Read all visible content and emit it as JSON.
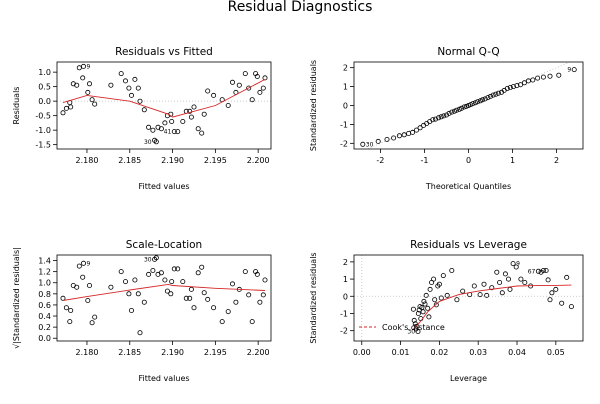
{
  "title": "Residual Diagnostics",
  "colors": {
    "axis": "#000000",
    "points": "#000000",
    "smooth": "#d62728",
    "reference": "#bdbdbd",
    "grid": "#cccccc"
  },
  "chart_data": [
    {
      "type": "scatter",
      "title": "Residuals vs Fitted",
      "xlabel": "Fitted values",
      "ylabel": "Residuals",
      "xlim": [
        2.1765,
        2.2015
      ],
      "ylim": [
        -1.65,
        1.35
      ],
      "xticks": [
        2.18,
        2.185,
        2.19,
        2.195,
        2.2
      ],
      "xtick_labels": [
        "2.180",
        "2.185",
        "2.190",
        "2.195",
        "2.200"
      ],
      "yticks": [
        -1.5,
        -1.0,
        -0.5,
        0.0,
        0.5,
        1.0
      ],
      "ytick_labels": [
        "-1.5",
        "-1.0",
        "-0.5",
        "0.0",
        "0.5",
        "1.0"
      ],
      "reference_hline": 0,
      "points": [
        [
          2.1772,
          -0.4
        ],
        [
          2.1776,
          -0.25
        ],
        [
          2.178,
          -0.05
        ],
        [
          2.1781,
          -0.2
        ],
        [
          2.1784,
          0.6
        ],
        [
          2.1788,
          0.55
        ],
        [
          2.1791,
          1.15
        ],
        [
          2.1795,
          0.8
        ],
        [
          2.1796,
          1.2
        ],
        [
          2.1801,
          0.3
        ],
        [
          2.1803,
          0.6
        ],
        [
          2.1806,
          0.05
        ],
        [
          2.1809,
          -0.1
        ],
        [
          2.1828,
          0.55
        ],
        [
          2.184,
          0.95
        ],
        [
          2.1845,
          0.7
        ],
        [
          2.1849,
          0.45
        ],
        [
          2.1852,
          0.2
        ],
        [
          2.1856,
          0.75
        ],
        [
          2.186,
          0.45
        ],
        [
          2.1862,
          0.0
        ],
        [
          2.1867,
          -0.3
        ],
        [
          2.1872,
          -0.9
        ],
        [
          2.1877,
          -1.0
        ],
        [
          2.1879,
          -1.35
        ],
        [
          2.1881,
          -1.4
        ],
        [
          2.1883,
          -0.9
        ],
        [
          2.1887,
          -0.95
        ],
        [
          2.1891,
          -0.75
        ],
        [
          2.1894,
          -0.5
        ],
        [
          2.1898,
          -0.45
        ],
        [
          2.1899,
          -0.7
        ],
        [
          2.1902,
          -1.05
        ],
        [
          2.1906,
          -1.05
        ],
        [
          2.1912,
          -0.7
        ],
        [
          2.1916,
          -0.35
        ],
        [
          2.192,
          -0.35
        ],
        [
          2.1922,
          -0.55
        ],
        [
          2.1925,
          -0.2
        ],
        [
          2.193,
          -0.95
        ],
        [
          2.1934,
          -1.1
        ],
        [
          2.1937,
          -0.45
        ],
        [
          2.1941,
          0.35
        ],
        [
          2.1948,
          0.2
        ],
        [
          2.1958,
          0.05
        ],
        [
          2.1965,
          -0.15
        ],
        [
          2.197,
          0.65
        ],
        [
          2.1974,
          0.3
        ],
        [
          2.1978,
          0.55
        ],
        [
          2.1985,
          0.95
        ],
        [
          2.1989,
          0.45
        ],
        [
          2.1993,
          0.05
        ],
        [
          2.1997,
          0.95
        ],
        [
          2.1999,
          0.85
        ],
        [
          2.2002,
          0.3
        ],
        [
          2.2006,
          0.45
        ],
        [
          2.2008,
          0.8
        ]
      ],
      "smooth": [
        [
          2.1772,
          -0.05
        ],
        [
          2.18,
          0.2
        ],
        [
          2.185,
          0.0
        ],
        [
          2.1895,
          -0.45
        ],
        [
          2.19,
          -0.55
        ],
        [
          2.195,
          -0.15
        ],
        [
          2.2008,
          0.75
        ]
      ],
      "point_labels": [
        {
          "text": "30",
          "x": 2.1879,
          "y": -1.4,
          "side": "left"
        },
        {
          "text": "41",
          "x": 2.1902,
          "y": -1.05,
          "side": "left"
        },
        {
          "text": "9",
          "x": 2.1796,
          "y": 1.2,
          "side": "right"
        }
      ]
    },
    {
      "type": "scatter",
      "title": "Normal Q-Q",
      "xlabel": "Theoretical Quantiles",
      "ylabel": "Standardized residuals",
      "xlim": [
        -2.6,
        2.6
      ],
      "ylim": [
        -2.3,
        2.3
      ],
      "xticks": [
        -2,
        -1,
        0,
        1,
        2
      ],
      "xtick_labels": [
        "-2",
        "-1",
        "0",
        "1",
        "2"
      ],
      "yticks": [
        -2,
        -1,
        0,
        1,
        2
      ],
      "ytick_labels": [
        "-2",
        "-1",
        "0",
        "1",
        "2"
      ],
      "reference_line": [
        [
          -2.6,
          -2.6
        ],
        [
          2.6,
          2.6
        ]
      ],
      "points": [
        [
          -2.4,
          -2.05
        ],
        [
          -2.05,
          -1.9
        ],
        [
          -1.85,
          -1.8
        ],
        [
          -1.7,
          -1.72
        ],
        [
          -1.57,
          -1.6
        ],
        [
          -1.46,
          -1.55
        ],
        [
          -1.36,
          -1.48
        ],
        [
          -1.27,
          -1.42
        ],
        [
          -1.18,
          -1.3
        ],
        [
          -1.1,
          -1.18
        ],
        [
          -1.02,
          -1.05
        ],
        [
          -0.95,
          -0.95
        ],
        [
          -0.88,
          -0.85
        ],
        [
          -0.81,
          -0.75
        ],
        [
          -0.75,
          -0.72
        ],
        [
          -0.68,
          -0.65
        ],
        [
          -0.62,
          -0.6
        ],
        [
          -0.56,
          -0.55
        ],
        [
          -0.5,
          -0.5
        ],
        [
          -0.44,
          -0.42
        ],
        [
          -0.38,
          -0.35
        ],
        [
          -0.32,
          -0.3
        ],
        [
          -0.27,
          -0.25
        ],
        [
          -0.21,
          -0.2
        ],
        [
          -0.16,
          -0.15
        ],
        [
          -0.1,
          -0.08
        ],
        [
          -0.05,
          -0.05
        ],
        [
          0.0,
          0.0
        ],
        [
          0.05,
          0.05
        ],
        [
          0.1,
          0.1
        ],
        [
          0.16,
          0.15
        ],
        [
          0.21,
          0.2
        ],
        [
          0.27,
          0.25
        ],
        [
          0.32,
          0.3
        ],
        [
          0.38,
          0.35
        ],
        [
          0.44,
          0.42
        ],
        [
          0.5,
          0.48
        ],
        [
          0.56,
          0.55
        ],
        [
          0.62,
          0.6
        ],
        [
          0.68,
          0.65
        ],
        [
          0.75,
          0.7
        ],
        [
          0.81,
          0.8
        ],
        [
          0.88,
          0.9
        ],
        [
          0.95,
          0.95
        ],
        [
          1.02,
          1.0
        ],
        [
          1.1,
          1.05
        ],
        [
          1.18,
          1.1
        ],
        [
          1.27,
          1.2
        ],
        [
          1.36,
          1.3
        ],
        [
          1.46,
          1.35
        ],
        [
          1.57,
          1.45
        ],
        [
          1.7,
          1.5
        ],
        [
          1.85,
          1.55
        ],
        [
          2.05,
          1.6
        ],
        [
          2.4,
          1.9
        ]
      ],
      "point_labels": [
        {
          "text": "30",
          "x": -2.4,
          "y": -2.05,
          "side": "right"
        },
        {
          "text": "9",
          "x": 2.4,
          "y": 1.9,
          "side": "left"
        }
      ]
    },
    {
      "type": "scatter",
      "title": "Scale-Location",
      "xlabel": "Fitted values",
      "ylabel": "√|Standardized residuals|",
      "xlim": [
        2.1765,
        2.2015
      ],
      "ylim": [
        -0.05,
        1.5
      ],
      "xticks": [
        2.18,
        2.185,
        2.19,
        2.195,
        2.2
      ],
      "xtick_labels": [
        "2.180",
        "2.185",
        "2.190",
        "2.195",
        "2.200"
      ],
      "yticks": [
        0.0,
        0.2,
        0.4,
        0.6,
        0.8,
        1.0,
        1.2,
        1.4
      ],
      "ytick_labels": [
        "0.0",
        "0.2",
        "0.4",
        "0.6",
        "0.8",
        "1.0",
        "1.2",
        "1.4"
      ],
      "points": [
        [
          2.1772,
          0.72
        ],
        [
          2.1776,
          0.55
        ],
        [
          2.178,
          0.3
        ],
        [
          2.1781,
          0.5
        ],
        [
          2.1784,
          0.95
        ],
        [
          2.1788,
          0.92
        ],
        [
          2.1791,
          1.3
        ],
        [
          2.1795,
          1.1
        ],
        [
          2.1796,
          1.35
        ],
        [
          2.1801,
          0.68
        ],
        [
          2.1803,
          0.95
        ],
        [
          2.1806,
          0.28
        ],
        [
          2.1809,
          0.38
        ],
        [
          2.1828,
          0.92
        ],
        [
          2.184,
          1.2
        ],
        [
          2.1845,
          1.02
        ],
        [
          2.1849,
          0.8
        ],
        [
          2.1852,
          0.5
        ],
        [
          2.1856,
          1.05
        ],
        [
          2.186,
          0.8
        ],
        [
          2.1862,
          0.1
        ],
        [
          2.1867,
          0.65
        ],
        [
          2.1872,
          1.15
        ],
        [
          2.1877,
          1.22
        ],
        [
          2.1879,
          1.42
        ],
        [
          2.1881,
          1.45
        ],
        [
          2.1883,
          1.15
        ],
        [
          2.1887,
          1.18
        ],
        [
          2.1891,
          1.05
        ],
        [
          2.1894,
          0.85
        ],
        [
          2.1898,
          0.8
        ],
        [
          2.1899,
          1.02
        ],
        [
          2.1902,
          1.25
        ],
        [
          2.1906,
          1.25
        ],
        [
          2.1912,
          1.02
        ],
        [
          2.1916,
          0.72
        ],
        [
          2.192,
          0.72
        ],
        [
          2.1922,
          0.88
        ],
        [
          2.1925,
          0.55
        ],
        [
          2.193,
          1.18
        ],
        [
          2.1934,
          1.28
        ],
        [
          2.1937,
          0.82
        ],
        [
          2.1941,
          0.7
        ],
        [
          2.1948,
          0.55
        ],
        [
          2.1958,
          0.3
        ],
        [
          2.1965,
          0.48
        ],
        [
          2.197,
          0.98
        ],
        [
          2.1974,
          0.65
        ],
        [
          2.1978,
          0.88
        ],
        [
          2.1985,
          1.2
        ],
        [
          2.1989,
          0.78
        ],
        [
          2.1993,
          0.3
        ],
        [
          2.1997,
          1.2
        ],
        [
          2.1999,
          1.15
        ],
        [
          2.2002,
          0.65
        ],
        [
          2.2006,
          0.78
        ],
        [
          2.2008,
          1.05
        ]
      ],
      "smooth": [
        [
          2.1772,
          0.68
        ],
        [
          2.18,
          0.75
        ],
        [
          2.185,
          0.87
        ],
        [
          2.1895,
          0.97
        ],
        [
          2.19,
          0.95
        ],
        [
          2.195,
          0.9
        ],
        [
          2.2008,
          0.86
        ]
      ],
      "point_labels": [
        {
          "text": "30",
          "x": 2.1879,
          "y": 1.42,
          "side": "left"
        },
        {
          "text": "9",
          "x": 2.1796,
          "y": 1.35,
          "side": "right"
        }
      ]
    },
    {
      "type": "scatter",
      "title": "Residuals vs Leverage",
      "xlabel": "Leverage",
      "ylabel": "Standardized residuals",
      "xlim": [
        -0.002,
        0.057
      ],
      "ylim": [
        -2.6,
        2.4
      ],
      "xticks": [
        0.0,
        0.01,
        0.02,
        0.03,
        0.04,
        0.05
      ],
      "xtick_labels": [
        "0.00",
        "0.01",
        "0.02",
        "0.03",
        "0.04",
        "0.05"
      ],
      "yticks": [
        -2,
        -1,
        0,
        1,
        2
      ],
      "ytick_labels": [
        "-2",
        "-1",
        "0",
        "1",
        "2"
      ],
      "reference_hline": 0,
      "reference_vline": 0,
      "legend": {
        "label": "Cook's distance",
        "placement": "bottom-left"
      },
      "points": [
        [
          0.0133,
          -0.75
        ],
        [
          0.0135,
          -1.4
        ],
        [
          0.0138,
          -1.6
        ],
        [
          0.014,
          -1.9
        ],
        [
          0.0142,
          -1.75
        ],
        [
          0.0145,
          -2.05
        ],
        [
          0.0146,
          -1.0
        ],
        [
          0.0148,
          -0.8
        ],
        [
          0.015,
          -0.6
        ],
        [
          0.0152,
          -1.3
        ],
        [
          0.0155,
          -0.65
        ],
        [
          0.0158,
          -0.9
        ],
        [
          0.016,
          -0.3
        ],
        [
          0.0163,
          -0.45
        ],
        [
          0.0166,
          0.05
        ],
        [
          0.017,
          -0.7
        ],
        [
          0.0173,
          -1.2
        ],
        [
          0.0176,
          0.4
        ],
        [
          0.018,
          0.8
        ],
        [
          0.0185,
          1.0
        ],
        [
          0.0188,
          -0.2
        ],
        [
          0.0192,
          -0.5
        ],
        [
          0.0196,
          0.6
        ],
        [
          0.02,
          0.7
        ],
        [
          0.0205,
          -0.1
        ],
        [
          0.021,
          1.2
        ],
        [
          0.022,
          0.05
        ],
        [
          0.0232,
          1.5
        ],
        [
          0.0245,
          -0.2
        ],
        [
          0.026,
          0.3
        ],
        [
          0.0278,
          0.1
        ],
        [
          0.029,
          0.6
        ],
        [
          0.0305,
          0.1
        ],
        [
          0.0315,
          0.7
        ],
        [
          0.0322,
          0.05
        ],
        [
          0.0335,
          0.5
        ],
        [
          0.0348,
          1.4
        ],
        [
          0.0355,
          0.8
        ],
        [
          0.0362,
          0.2
        ],
        [
          0.037,
          1.3
        ],
        [
          0.0378,
          1.0
        ],
        [
          0.0382,
          0.4
        ],
        [
          0.039,
          1.9
        ],
        [
          0.0398,
          1.7
        ],
        [
          0.041,
          1.0
        ],
        [
          0.042,
          0.8
        ],
        [
          0.0435,
          0.6
        ],
        [
          0.0455,
          1.45
        ],
        [
          0.0462,
          1.4
        ],
        [
          0.0468,
          1.5
        ],
        [
          0.0475,
          1.5
        ],
        [
          0.048,
          0.95
        ],
        [
          0.0485,
          -0.2
        ],
        [
          0.049,
          0.2
        ],
        [
          0.05,
          0.4
        ],
        [
          0.0515,
          -0.4
        ],
        [
          0.0528,
          1.1
        ],
        [
          0.054,
          -0.6
        ]
      ],
      "smooth": [
        [
          0.0133,
          -1.9
        ],
        [
          0.015,
          -1.5
        ],
        [
          0.017,
          -0.9
        ],
        [
          0.02,
          -0.3
        ],
        [
          0.025,
          0.1
        ],
        [
          0.03,
          0.3
        ],
        [
          0.035,
          0.45
        ],
        [
          0.04,
          0.6
        ],
        [
          0.045,
          0.62
        ],
        [
          0.05,
          0.63
        ],
        [
          0.054,
          0.65
        ]
      ],
      "point_labels": [
        {
          "text": "9",
          "x": 0.039,
          "y": 1.9,
          "side": "right"
        },
        {
          "text": "67",
          "x": 0.0455,
          "y": 1.45,
          "side": "left"
        },
        {
          "text": "30",
          "x": 0.0145,
          "y": -2.05,
          "side": "left"
        }
      ]
    }
  ]
}
